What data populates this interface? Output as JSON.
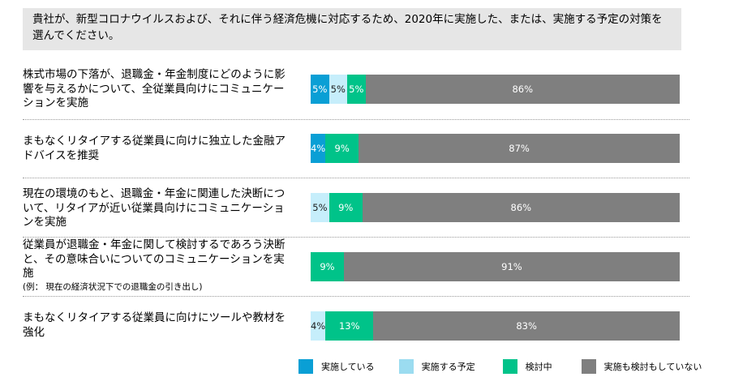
{
  "question": "貴社が、新型コロナウイルスおよび、それに伴う経済危機に対応するため、2020年に実施した、または、実施する予定の対策を選んでください。",
  "chart_data": {
    "type": "bar",
    "orientation": "horizontal",
    "stacked": true,
    "categories": [
      {
        "text": "株式市場の下落が、退職金・年金制度にどのように影響を与えるかについて、全従業員向けにコミュニケーションを実施",
        "note": ""
      },
      {
        "text": "まもなくリタイアする従業員に向けに独立した金融アドバイスを推奨",
        "note": ""
      },
      {
        "text": "現在の環境のもと、退職金・年金に関連した決断について、リタイアが近い従業員向けにコミュニケーションを実施",
        "note": ""
      },
      {
        "text": " 従業員が退職金・年金に関して検討するであろう決断と、その意味合いについてのコミュニケーションを実施",
        "note": "(例： 現在の経済状況下での退職金の引き出し)"
      },
      {
        "text": "まもなくリタイアする従業員に向けにツールや教材を強化",
        "note": ""
      }
    ],
    "series": [
      {
        "name": "実施している",
        "color": "#0a9fd5",
        "values": [
          5,
          4,
          0,
          0,
          0
        ]
      },
      {
        "name": "実施する予定",
        "color": "#c6eefb",
        "values": [
          5,
          0,
          5,
          0,
          4
        ]
      },
      {
        "name": "検討中",
        "color": "#00c389",
        "values": [
          5,
          9,
          9,
          9,
          13
        ]
      },
      {
        "name": "実施も検討もしていない",
        "color": "#7f7f7f",
        "values": [
          86,
          87,
          86,
          91,
          83
        ]
      }
    ],
    "value_suffix": "%",
    "legend_position": "bottom",
    "grid": false
  }
}
